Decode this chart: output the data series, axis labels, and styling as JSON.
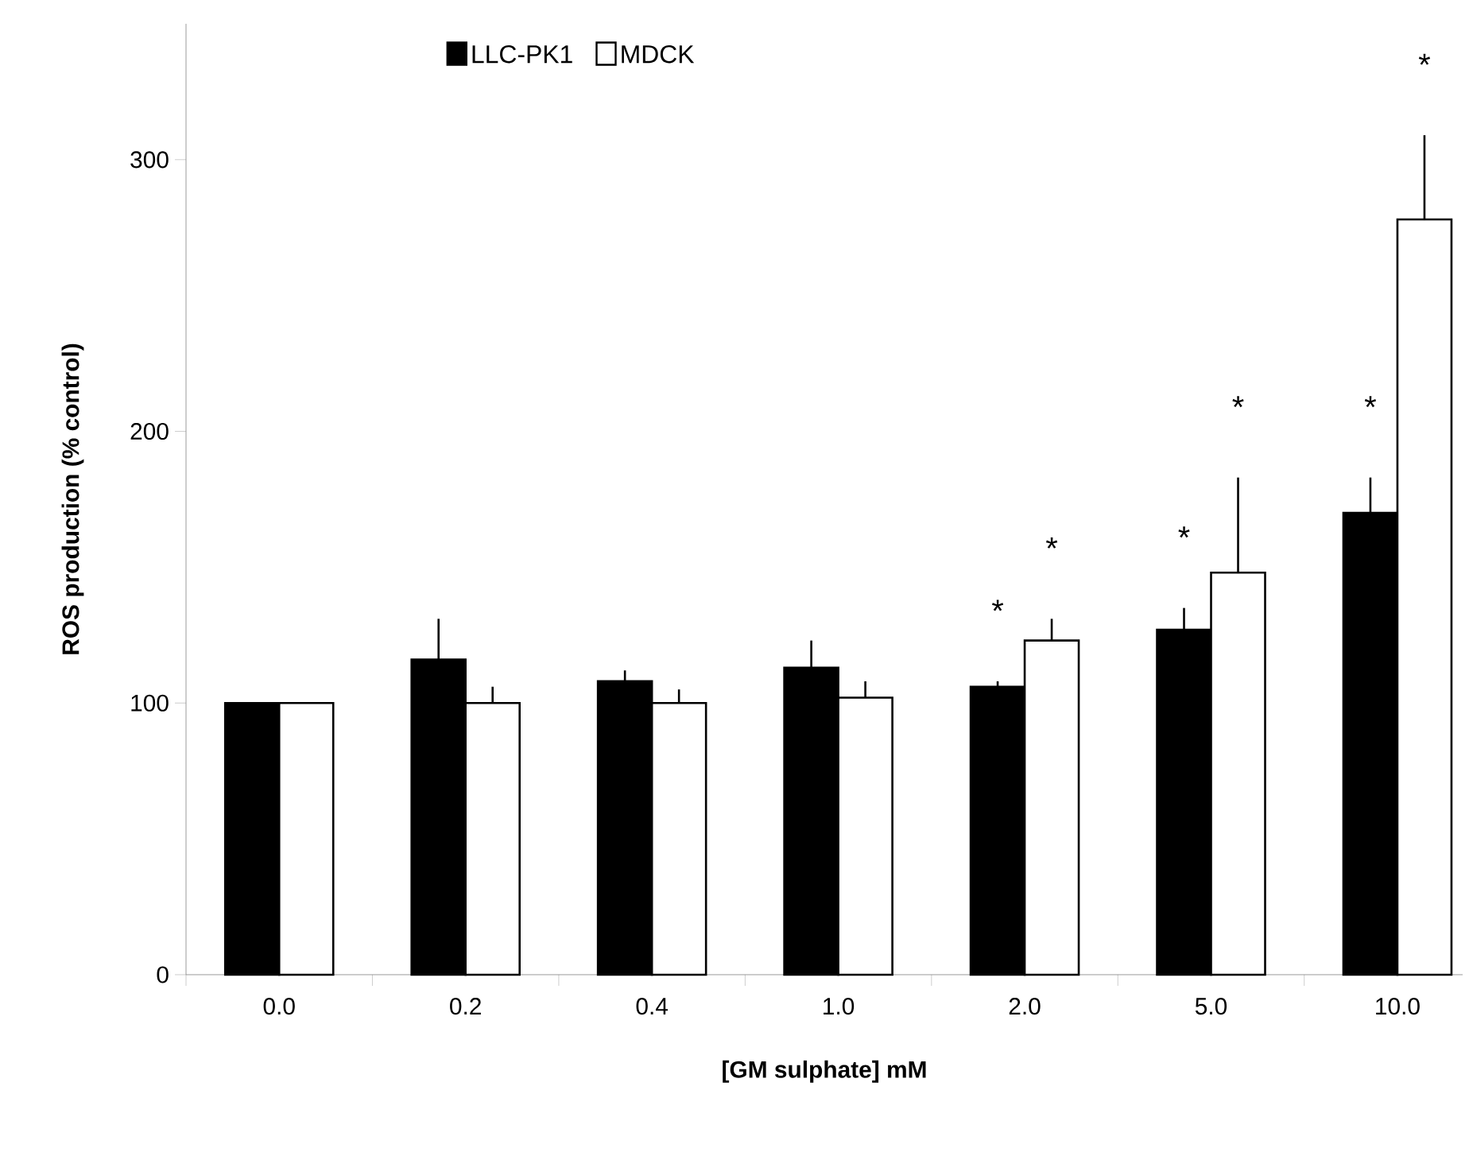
{
  "chart_data": {
    "type": "bar",
    "xlabel": "[GM sulphate] mM",
    "ylabel": "ROS production (% control)",
    "categories": [
      "0.0",
      "0.2",
      "0.4",
      "1.0",
      "2.0",
      "5.0",
      "10.0"
    ],
    "series": [
      {
        "name": "LLC-PK1",
        "color": "#000000",
        "values": [
          100,
          116,
          108,
          113,
          106,
          127,
          170
        ],
        "errors": [
          null,
          [
            116,
            131
          ],
          [
            108,
            112
          ],
          [
            113,
            123
          ],
          [
            106,
            108
          ],
          [
            127,
            135
          ],
          [
            170,
            183
          ]
        ]
      },
      {
        "name": "MDCK",
        "color": "#ffffff",
        "values": [
          100,
          100,
          100,
          102,
          123,
          148,
          278
        ],
        "errors": [
          null,
          [
            100,
            106
          ],
          [
            100,
            105
          ],
          [
            102,
            108
          ],
          [
            123,
            131
          ],
          [
            148,
            183
          ],
          [
            278,
            309
          ]
        ]
      }
    ],
    "ylim": [
      0,
      350
    ],
    "yticks": [
      0,
      100,
      200,
      300
    ],
    "grid": false,
    "legend": "top left",
    "annotations": [
      "*",
      "*",
      "*",
      "*",
      "*",
      "*"
    ]
  }
}
